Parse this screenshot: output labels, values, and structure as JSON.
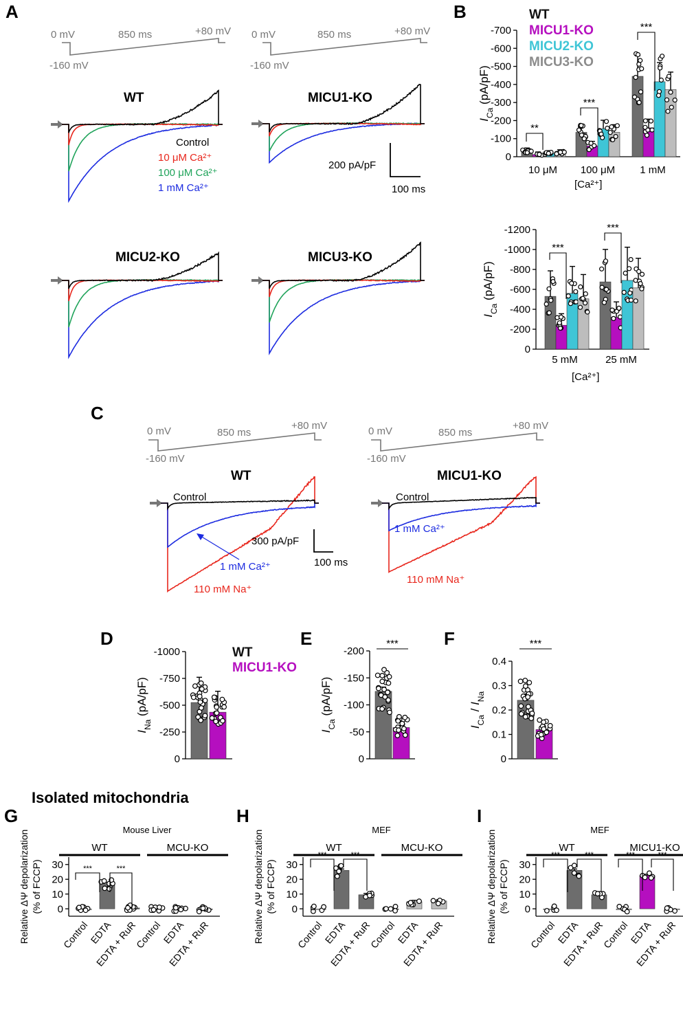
{
  "colors": {
    "wt": "#6d6d6d",
    "micu1": "#b50fbf",
    "micu2": "#3fc5d6",
    "micu3": "#bdbdbd",
    "ctrl": "#000000",
    "c10": "#e8261c",
    "c100": "#1fa35a",
    "c1mm": "#1c2be0",
    "na": "#e8261c",
    "protocol": "#777777"
  },
  "panelA": {
    "label": "A",
    "protocol": {
      "start": "0 mV",
      "hold": "-160 mV",
      "ramp": "850 ms",
      "end": "+80 mV"
    },
    "titles": [
      "WT",
      "MICU1-KO",
      "MICU2-KO",
      "MICU3-KO"
    ],
    "legend": [
      "Control",
      "10 μM Ca²⁺",
      "100 μM Ca²⁺",
      "1 mM Ca²⁺"
    ],
    "scale": {
      "y": "200 pA/pF",
      "x": "100 ms"
    }
  },
  "panelB": {
    "label": "B",
    "legend": [
      "WT",
      "MICU1-KO",
      "MICU2-KO",
      "MICU3-KO"
    ],
    "xlabel": "[Ca²⁺]"
  },
  "panelC": {
    "label": "C",
    "protocol": {
      "start": "0 mV",
      "hold": "-160 mV",
      "ramp": "850 ms",
      "end": "+80 mV"
    },
    "titles": [
      "WT",
      "MICU1-KO"
    ],
    "control": "Control",
    "ca": "1 mM Ca²⁺",
    "na": "110 mM Na⁺",
    "scale": {
      "y": "300 pA/pF",
      "x": "100 ms"
    }
  },
  "panelD": {
    "label": "D",
    "legend": [
      "WT",
      "MICU1-KO"
    ]
  },
  "panelE": {
    "label": "E"
  },
  "panelF": {
    "label": "F"
  },
  "panelG": {
    "label": "G",
    "heading": "Isolated mitochondria",
    "subtitle": "Mouse Liver",
    "groups": [
      "WT",
      "MCU-KO"
    ]
  },
  "panelH": {
    "label": "H",
    "subtitle": "MEF",
    "groups": [
      "WT",
      "MCU-KO"
    ]
  },
  "panelI": {
    "label": "I",
    "subtitle": "MEF",
    "groups": [
      "WT",
      "MICU1-KO"
    ]
  },
  "chart_data": [
    {
      "id": "B-top",
      "type": "bar",
      "ylabel": "I_Ca (pA/pF)",
      "xlabel": "[Ca²⁺]",
      "ylim": [
        0,
        -700
      ],
      "ticks": [
        0,
        -100,
        -200,
        -300,
        -400,
        -500,
        -600,
        -700
      ],
      "categories": [
        "10 μM",
        "100 μM",
        "1 mM"
      ],
      "series": [
        {
          "name": "WT",
          "values": [
            -30,
            -135,
            -445
          ]
        },
        {
          "name": "MICU1-KO",
          "values": [
            -12,
            -60,
            -160
          ]
        },
        {
          "name": "MICU2-KO",
          "values": [
            -18,
            -155,
            -415
          ]
        },
        {
          "name": "MICU3-KO",
          "values": [
            -22,
            -135,
            -372
          ]
        }
      ],
      "sig": [
        {
          "cat": 0,
          "text": "**"
        },
        {
          "cat": 1,
          "text": "***"
        },
        {
          "cat": 2,
          "text": "***"
        }
      ]
    },
    {
      "id": "B-bottom",
      "type": "bar",
      "ylabel": "I_Ca (pA/pF)",
      "xlabel": "[Ca²⁺]",
      "ylim": [
        0,
        -1200
      ],
      "ticks": [
        0,
        -200,
        -400,
        -600,
        -800,
        -1000,
        -1200
      ],
      "categories": [
        "5 mM",
        "25 mM"
      ],
      "series": [
        {
          "name": "WT",
          "values": [
            -530,
            -675
          ]
        },
        {
          "name": "MICU1-KO",
          "values": [
            -240,
            -320
          ]
        },
        {
          "name": "MICU2-KO",
          "values": [
            -560,
            -690
          ]
        },
        {
          "name": "MICU3-KO",
          "values": [
            -505,
            -615
          ]
        }
      ],
      "sig": [
        {
          "cat": 0,
          "text": "***"
        },
        {
          "cat": 1,
          "text": "***"
        }
      ]
    },
    {
      "id": "D",
      "type": "bar",
      "ylabel": "I_Na (pA/pF)",
      "ylim": [
        0,
        -1000
      ],
      "ticks": [
        0,
        -250,
        -500,
        -750,
        -1000
      ],
      "categories": [
        "WT",
        "MICU1-KO"
      ],
      "values": [
        -525,
        -435
      ]
    },
    {
      "id": "E",
      "type": "bar",
      "ylabel": "I_Ca (pA/pF)",
      "ylim": [
        0,
        -200
      ],
      "ticks": [
        0,
        -50,
        -100,
        -150,
        -200
      ],
      "categories": [
        "WT",
        "MICU1-KO"
      ],
      "values": [
        -125,
        -58
      ],
      "sig": "***"
    },
    {
      "id": "F",
      "type": "bar",
      "ylabel": "I_Ca / I_Na",
      "ylim": [
        0,
        0.4
      ],
      "ticks": [
        0,
        0.1,
        0.2,
        0.3,
        0.4
      ],
      "categories": [
        "WT",
        "MICU1-KO"
      ],
      "values": [
        0.24,
        0.12
      ],
      "sig": "***"
    },
    {
      "id": "G",
      "type": "bar",
      "ylabel": "Relative ΔΨ depolarization (% of FCCP)",
      "ylim": [
        -5,
        35
      ],
      "ticks": [
        0,
        10,
        20,
        30
      ],
      "categories": [
        "Control",
        "EDTA",
        "EDTA + RuR",
        "Control",
        "EDTA",
        "EDTA + RuR"
      ],
      "values": [
        0,
        17,
        0.6,
        -0.2,
        -0.3,
        -0.3
      ]
    },
    {
      "id": "H",
      "type": "bar",
      "ylabel": "Relative ΔΨ depolarization (% of FCCP)",
      "ylim": [
        -5,
        35
      ],
      "ticks": [
        0,
        10,
        20,
        30
      ],
      "categories": [
        "Control",
        "EDTA",
        "EDTA + RuR",
        "Control",
        "EDTA",
        "EDTA + RuR"
      ],
      "values": [
        0,
        26,
        9.5,
        0,
        4.8,
        5.3
      ]
    },
    {
      "id": "I",
      "type": "bar",
      "ylabel": "Relative ΔΨ depolarization (% of FCCP)",
      "ylim": [
        -5,
        35
      ],
      "ticks": [
        0,
        10,
        20,
        30
      ],
      "categories": [
        "Control",
        "EDTA",
        "EDTA + RuR",
        "Control",
        "EDTA",
        "EDTA + RuR"
      ],
      "values": [
        0,
        26,
        9.5,
        -0.2,
        22.5,
        -0.2
      ]
    }
  ]
}
